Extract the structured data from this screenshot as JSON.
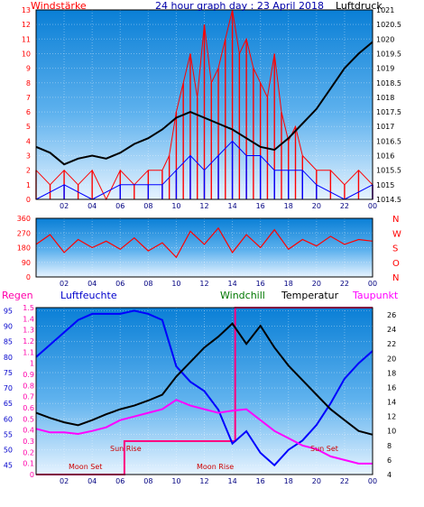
{
  "chart_data": [
    {
      "type": "line",
      "panel": "wind-pressure",
      "title": "24 hour graph day : 23 April 2018",
      "left_label": "Windstärke",
      "right_label": "Luftdruck",
      "x_ticks": [
        "02",
        "04",
        "06",
        "08",
        "10",
        "12",
        "14",
        "16",
        "18",
        "20",
        "22",
        "00"
      ],
      "y_left_ticks": [
        "0",
        "1",
        "2",
        "3",
        "4",
        "5",
        "6",
        "7",
        "8",
        "9",
        "10",
        "11",
        "12",
        "13"
      ],
      "y_right_ticks": [
        "1014.5",
        "1015",
        "1015.5",
        "1016",
        "1016.5",
        "1017",
        "1017.5",
        "1018",
        "1018.5",
        "1019",
        "1019.5",
        "1020",
        "1020.5",
        "1021"
      ],
      "ylim_left": [
        0,
        13
      ],
      "ylim_right": [
        1014.5,
        1021
      ],
      "series": [
        {
          "name": "Windstärke",
          "color": "#ff0000",
          "axis": "left",
          "note": "gust",
          "x": [
            0,
            1,
            2,
            3,
            4,
            5,
            6,
            7,
            8,
            9,
            9.5,
            10,
            10.5,
            11,
            11.5,
            12,
            12.5,
            13,
            13.5,
            14,
            14.5,
            15,
            15.5,
            16,
            16.5,
            17,
            17.5,
            18,
            18.5,
            19,
            20,
            21,
            22,
            23,
            24
          ],
          "y": [
            2,
            1,
            2,
            1,
            2,
            0,
            2,
            1,
            2,
            2,
            3,
            6,
            8,
            10,
            7,
            12,
            8,
            9,
            11,
            13,
            10,
            11,
            9,
            8,
            7,
            10,
            6,
            4,
            5,
            3,
            2,
            2,
            1,
            2,
            1
          ]
        },
        {
          "name": "",
          "color": "#0000ff",
          "axis": "left",
          "note": "mean",
          "x": [
            0,
            2,
            4,
            6,
            8,
            9,
            10,
            11,
            12,
            13,
            14,
            15,
            16,
            17,
            18,
            19,
            20,
            22,
            24
          ],
          "y": [
            0,
            1,
            0,
            1,
            1,
            1,
            2,
            3,
            2,
            3,
            4,
            3,
            3,
            2,
            2,
            2,
            1,
            0,
            1
          ]
        },
        {
          "name": "Luftdruck",
          "color": "#000000",
          "axis": "right",
          "x": [
            0,
            1,
            2,
            3,
            4,
            5,
            6,
            7,
            8,
            9,
            10,
            11,
            12,
            13,
            14,
            15,
            16,
            17,
            18,
            19,
            20,
            21,
            22,
            23,
            24
          ],
          "y": [
            1016.3,
            1016.1,
            1015.7,
            1015.9,
            1016.0,
            1015.9,
            1016.1,
            1016.4,
            1016.6,
            1016.9,
            1017.3,
            1017.5,
            1017.3,
            1017.1,
            1016.9,
            1016.6,
            1016.3,
            1016.2,
            1016.6,
            1017.1,
            1017.6,
            1018.3,
            1019.0,
            1019.5,
            1019.9
          ]
        }
      ]
    },
    {
      "type": "line",
      "panel": "wind-direction",
      "x_ticks": [
        "02",
        "04",
        "06",
        "08",
        "10",
        "12",
        "14",
        "16",
        "18",
        "20",
        "22",
        "00"
      ],
      "y_ticks": [
        "0",
        "90",
        "180",
        "270",
        "360"
      ],
      "compass_labels": [
        "N",
        "W",
        "S",
        "O",
        "N"
      ],
      "ylim": [
        0,
        360
      ],
      "series": [
        {
          "name": "",
          "color": "#ff0000",
          "x": [
            0,
            1,
            2,
            3,
            4,
            5,
            6,
            7,
            8,
            9,
            10,
            11,
            12,
            13,
            14,
            15,
            16,
            17,
            18,
            19,
            20,
            21,
            22,
            23,
            24
          ],
          "y": [
            200,
            260,
            150,
            230,
            180,
            220,
            170,
            240,
            160,
            210,
            120,
            280,
            200,
            300,
            150,
            260,
            180,
            290,
            170,
            230,
            190,
            250,
            200,
            230,
            220
          ]
        }
      ]
    },
    {
      "type": "line",
      "panel": "rain-humidity-temperature",
      "header_labels": {
        "regen": "Regen",
        "luftfeuchte": "Luftfeuchte",
        "windchill": "Windchill",
        "temperatur": "Temperatur",
        "taupunkt": "Taupunkt"
      },
      "annotations": [
        "Moon Set",
        "Sun Rise",
        "Moon Rise",
        "Sun Set"
      ],
      "x_ticks": [
        "02",
        "04",
        "06",
        "08",
        "10",
        "12",
        "14",
        "16",
        "18",
        "20",
        "22",
        "00"
      ],
      "rain_ticks": [
        "0",
        "0.1",
        "0.2",
        "0.3",
        "0.4",
        "0.5",
        "0.6",
        "0.7",
        "0.8",
        "0.9",
        "1",
        "1.1",
        "1.2",
        "1.3",
        "1.4",
        "1.5"
      ],
      "humidity_ticks": [
        "45",
        "50",
        "55",
        "60",
        "65",
        "70",
        "75",
        "80",
        "85",
        "90",
        "95"
      ],
      "temp_ticks": [
        "4",
        "6",
        "8",
        "10",
        "12",
        "14",
        "16",
        "18",
        "20",
        "22",
        "24",
        "26"
      ],
      "rain_lim": [
        0,
        1.5
      ],
      "humidity_lim": [
        42,
        96
      ],
      "temp_lim": [
        4,
        27
      ],
      "series": [
        {
          "name": "Regen",
          "color": "#ff0080",
          "axis": "rain",
          "x": [
            0,
            6.3,
            6.3,
            14.2,
            14.2,
            24
          ],
          "y": [
            0,
            0,
            0.3,
            0.3,
            1.5,
            1.5
          ]
        },
        {
          "name": "Luftfeuchte",
          "color": "#0000ff",
          "axis": "humidity",
          "x": [
            0,
            1,
            2,
            3,
            4,
            5,
            6,
            7,
            8,
            9,
            10,
            11,
            12,
            13,
            14,
            15,
            16,
            17,
            18,
            19,
            20,
            21,
            22,
            23,
            24
          ],
          "y": [
            80,
            84,
            88,
            92,
            94,
            94,
            94,
            95,
            94,
            92,
            77,
            72,
            69,
            63,
            52,
            56,
            49,
            45,
            50,
            53,
            58,
            65,
            73,
            78,
            82
          ]
        },
        {
          "name": "Temperatur",
          "color": "#000000",
          "axis": "temp",
          "x": [
            0,
            1,
            2,
            3,
            4,
            5,
            6,
            7,
            8,
            9,
            10,
            11,
            12,
            13,
            14,
            15,
            16,
            17,
            18,
            19,
            20,
            21,
            22,
            23,
            24
          ],
          "y": [
            12.5,
            11.8,
            11.2,
            10.8,
            11.5,
            12.3,
            13.0,
            13.5,
            14.2,
            15.0,
            17.5,
            19.5,
            21.5,
            23.0,
            24.8,
            22.0,
            24.5,
            21.5,
            19.0,
            17.0,
            15.0,
            13.0,
            11.5,
            10.0,
            9.5
          ]
        },
        {
          "name": "Taupunkt",
          "color": "#ff00ff",
          "axis": "temp",
          "x": [
            0,
            1,
            2,
            3,
            4,
            5,
            6,
            7,
            8,
            9,
            10,
            11,
            12,
            13,
            14,
            15,
            16,
            17,
            18,
            19,
            20,
            21,
            22,
            23,
            24
          ],
          "y": [
            10.3,
            9.8,
            9.8,
            9.6,
            10.0,
            10.5,
            11.5,
            12.0,
            12.5,
            13.0,
            14.3,
            13.5,
            13.0,
            12.5,
            12.8,
            13.0,
            11.5,
            10.0,
            9.0,
            8.0,
            7.5,
            6.5,
            6.0,
            5.5,
            5.5
          ]
        }
      ]
    }
  ]
}
